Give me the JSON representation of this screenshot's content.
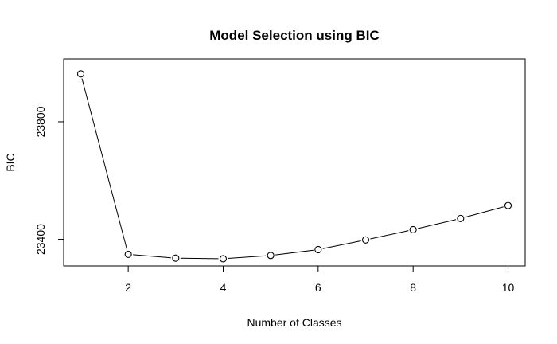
{
  "chart_data": {
    "type": "line",
    "title": "Model Selection using BIC",
    "xlabel": "Number of Classes",
    "ylabel": "BIC",
    "x": [
      1,
      2,
      3,
      4,
      5,
      6,
      7,
      8,
      9,
      10
    ],
    "y": [
      23963,
      23349,
      23336,
      23334,
      23345,
      23365,
      23398,
      23433,
      23471,
      23515
    ],
    "xticks": [
      2,
      4,
      6,
      8,
      10
    ],
    "yticks": [
      23400,
      23800
    ],
    "xlim": [
      0.64,
      10.36
    ],
    "ylim": [
      23309.4,
      24014
    ],
    "markers": "open-circle",
    "grid": false,
    "legend": "none"
  }
}
